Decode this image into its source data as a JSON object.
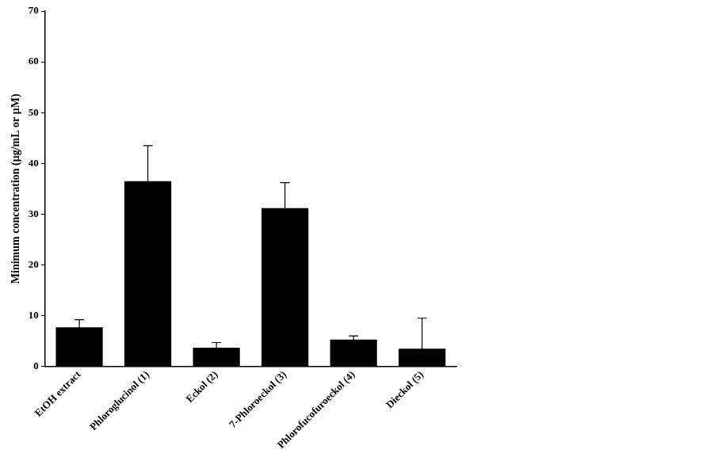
{
  "chart_data": {
    "type": "bar",
    "y_label": "Minimum concentration (μg/mL or μM)",
    "categories": [
      "EtOH extract",
      "Phloroglucinol (1)",
      "Eckol (2)",
      "7-Phloroeckol (3)",
      "Phlorofucofuroeckol (4)",
      "Dieckol (5)"
    ],
    "values": [
      7.7,
      36.5,
      3.7,
      31.2,
      5.3,
      3.5
    ],
    "errors": [
      1.5,
      7.0,
      1.0,
      5.0,
      0.7,
      6.0
    ],
    "color": "#000000",
    "ylim": [
      0,
      70
    ],
    "yticks": [
      0,
      10,
      20,
      30,
      40,
      50,
      60,
      70
    ],
    "grid": false
  }
}
